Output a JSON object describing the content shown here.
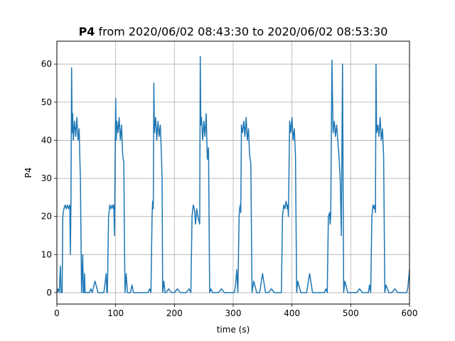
{
  "chart_data": {
    "type": "line",
    "title_bold": "P4",
    "title_rest": " from 2020/06/02 08:43:30 to 2020/06/02 08:53:30",
    "xlabel": "time (s)",
    "ylabel": "P4",
    "xlim": [
      0,
      600
    ],
    "ylim": [
      -3,
      66
    ],
    "xticks": [
      0,
      100,
      200,
      300,
      400,
      500,
      600
    ],
    "yticks": [
      0,
      10,
      20,
      30,
      40,
      50,
      60
    ],
    "grid": true,
    "line_color": "#1f77b4",
    "series": [
      {
        "x": [
          0,
          2,
          4,
          6,
          7,
          9,
          10,
          12,
          14,
          16,
          18,
          20,
          22,
          23,
          24,
          25,
          26,
          27,
          28,
          30,
          32,
          34,
          36,
          38,
          39,
          40,
          42,
          44,
          45,
          46,
          47,
          48,
          50,
          55,
          58,
          60,
          65,
          70,
          75,
          80,
          84,
          85,
          86,
          88,
          90,
          92,
          94,
          96,
          97,
          98,
          100,
          101,
          102,
          104,
          106,
          108,
          110,
          112,
          114,
          115,
          116,
          118,
          120,
          125,
          128,
          130,
          135,
          140,
          145,
          150,
          155,
          158,
          160,
          162,
          163,
          164,
          165,
          166,
          168,
          170,
          172,
          174,
          176,
          178,
          179,
          180,
          182,
          184,
          186,
          190,
          195,
          200,
          205,
          210,
          215,
          220,
          225,
          228,
          230,
          232,
          234,
          236,
          238,
          240,
          243,
          244,
          245,
          246,
          248,
          250,
          252,
          254,
          256,
          258,
          260,
          262,
          265,
          270,
          275,
          280,
          285,
          290,
          295,
          300,
          302,
          304,
          306,
          308,
          310,
          311,
          312,
          313,
          314,
          316,
          318,
          320,
          322,
          324,
          326,
          328,
          330,
          332,
          335,
          340,
          345,
          350,
          355,
          360,
          365,
          370,
          375,
          380,
          382,
          384,
          386,
          388,
          390,
          392,
          393,
          394,
          396,
          398,
          400,
          402,
          404,
          406,
          408,
          410,
          415,
          420,
          425,
          430,
          435,
          440,
          445,
          450,
          455,
          458,
          460,
          462,
          464,
          465,
          466,
          468,
          470,
          472,
          474,
          476,
          478,
          480,
          482,
          484,
          486,
          488,
          490,
          495,
          500,
          505,
          510,
          515,
          520,
          525,
          528,
          530,
          532,
          534,
          536,
          538,
          540,
          541,
          542,
          543,
          544,
          546,
          548,
          550,
          552,
          554,
          556,
          558,
          560,
          565,
          570,
          575,
          580,
          585,
          590,
          595,
          597,
          600
        ],
        "y": [
          0,
          1,
          0,
          7,
          0,
          0,
          20,
          22,
          23,
          22,
          23,
          22,
          23,
          10,
          23,
          59,
          42,
          47,
          40,
          45,
          41,
          46,
          40,
          43,
          36,
          30,
          0,
          10,
          0,
          0,
          5,
          0,
          0,
          0,
          1,
          0,
          3,
          0,
          0,
          0,
          5,
          0,
          0,
          20,
          23,
          22,
          23,
          22,
          23,
          15,
          51,
          40,
          45,
          42,
          46,
          40,
          44,
          36,
          34,
          12,
          0,
          5,
          0,
          0,
          2,
          0,
          0,
          0,
          0,
          0,
          0,
          1,
          0,
          20,
          24,
          22,
          55,
          42,
          46,
          40,
          45,
          41,
          44,
          36,
          30,
          0,
          3,
          0,
          0,
          1,
          0,
          0,
          1,
          0,
          0,
          0,
          1,
          0,
          20,
          23,
          22,
          18,
          22,
          20,
          18,
          62,
          44,
          46,
          40,
          45,
          41,
          47,
          35,
          38,
          0,
          1,
          0,
          0,
          0,
          1,
          0,
          0,
          0,
          0,
          0,
          2,
          6,
          0,
          20,
          22,
          23,
          21,
          44,
          42,
          45,
          41,
          46,
          40,
          43,
          36,
          34,
          0,
          3,
          0,
          0,
          5,
          0,
          0,
          1,
          0,
          0,
          0,
          0,
          20,
          23,
          22,
          24,
          22,
          23,
          20,
          45,
          42,
          46,
          40,
          43,
          36,
          0,
          3,
          0,
          0,
          0,
          5,
          0,
          0,
          0,
          0,
          0,
          1,
          0,
          20,
          21,
          18,
          20,
          61,
          42,
          45,
          41,
          44,
          40,
          36,
          30,
          15,
          60,
          0,
          3,
          0,
          0,
          0,
          0,
          1,
          0,
          0,
          0,
          0,
          2,
          0,
          20,
          23,
          22,
          23,
          21,
          60,
          42,
          44,
          41,
          46,
          40,
          43,
          36,
          0,
          2,
          0,
          0,
          1,
          0,
          0,
          0,
          0,
          1,
          6
        ]
      }
    ]
  }
}
